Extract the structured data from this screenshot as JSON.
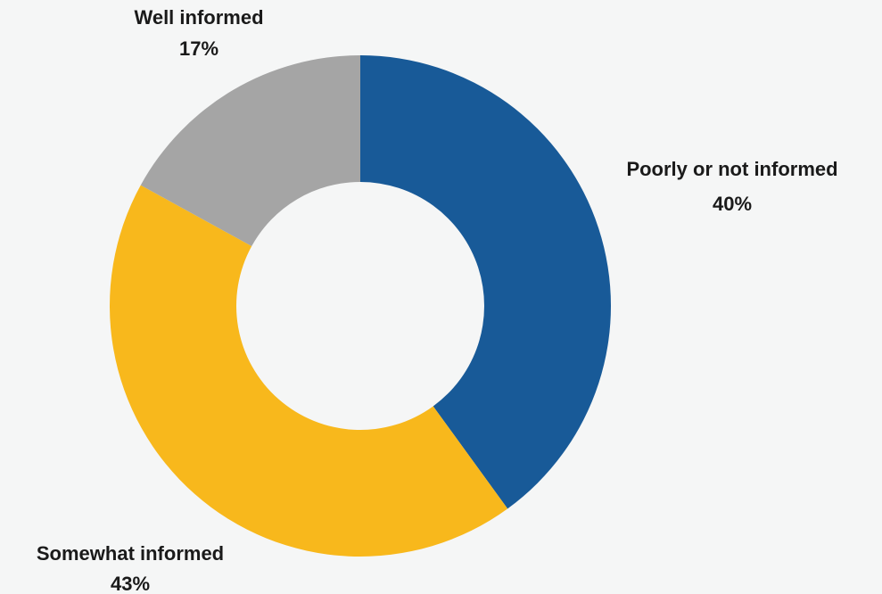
{
  "chart_data": {
    "type": "pie",
    "variant": "donut",
    "title": "",
    "categories": [
      "Poorly or not informed",
      "Somewhat informed",
      "Well informed"
    ],
    "values": [
      40,
      43,
      17
    ],
    "value_labels": [
      "40%",
      "43%",
      "17%"
    ],
    "colors": [
      "#185a98",
      "#f8b81c",
      "#a5a5a5"
    ],
    "start_angle": "12 o'clock",
    "direction": "clockwise",
    "legend": "none (labels placed beside slices)"
  },
  "background_color": "#f5f6f6"
}
